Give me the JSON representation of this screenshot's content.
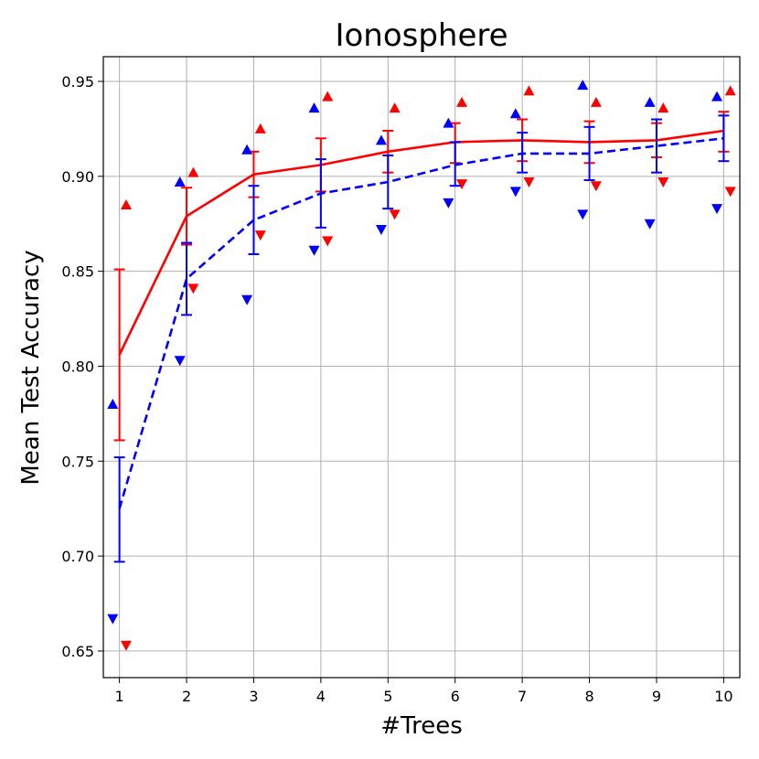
{
  "chart_data": {
    "type": "line",
    "title": "Ionosphere",
    "xlabel": "#Trees",
    "ylabel": "Mean Test Accuracy",
    "x": [
      1,
      2,
      3,
      4,
      5,
      6,
      7,
      8,
      9,
      10
    ],
    "xlim": [
      0.76,
      10.24
    ],
    "ylim": [
      0.636,
      0.963
    ],
    "xticks": [
      "1",
      "2",
      "3",
      "4",
      "5",
      "6",
      "7",
      "8",
      "9",
      "10"
    ],
    "yticks": [
      "0.65",
      "0.70",
      "0.75",
      "0.80",
      "0.85",
      "0.90",
      "0.95"
    ],
    "ytick_values": [
      0.65,
      0.7,
      0.75,
      0.8,
      0.85,
      0.9,
      0.95
    ],
    "grid": true,
    "series": [
      {
        "color": "#ff0000",
        "line_style": "solid",
        "marker_offset": 0.1,
        "values": [
          0.806,
          0.879,
          0.901,
          0.906,
          0.913,
          0.918,
          0.919,
          0.918,
          0.919,
          0.924
        ],
        "err_low": [
          0.761,
          0.864,
          0.889,
          0.892,
          0.902,
          0.907,
          0.908,
          0.907,
          0.91,
          0.913
        ],
        "err_high": [
          0.851,
          0.894,
          0.913,
          0.92,
          0.924,
          0.928,
          0.93,
          0.929,
          0.928,
          0.934
        ],
        "max": [
          0.885,
          0.902,
          0.925,
          0.942,
          0.936,
          0.939,
          0.945,
          0.939,
          0.936,
          0.945
        ],
        "min": [
          0.653,
          0.841,
          0.869,
          0.866,
          0.88,
          0.896,
          0.897,
          0.895,
          0.897,
          0.892
        ]
      },
      {
        "color": "#0000ff",
        "line_style": "dashed",
        "marker_offset": -0.1,
        "values": [
          0.725,
          0.846,
          0.877,
          0.891,
          0.897,
          0.906,
          0.912,
          0.912,
          0.916,
          0.92
        ],
        "err_low": [
          0.697,
          0.827,
          0.859,
          0.873,
          0.883,
          0.895,
          0.902,
          0.898,
          0.902,
          0.908
        ],
        "err_high": [
          0.752,
          0.865,
          0.895,
          0.909,
          0.911,
          0.918,
          0.923,
          0.926,
          0.93,
          0.932
        ],
        "max": [
          0.78,
          0.897,
          0.914,
          0.936,
          0.919,
          0.928,
          0.933,
          0.948,
          0.939,
          0.942
        ],
        "min": [
          0.667,
          0.803,
          0.835,
          0.861,
          0.872,
          0.886,
          0.892,
          0.88,
          0.875,
          0.883
        ]
      }
    ]
  }
}
